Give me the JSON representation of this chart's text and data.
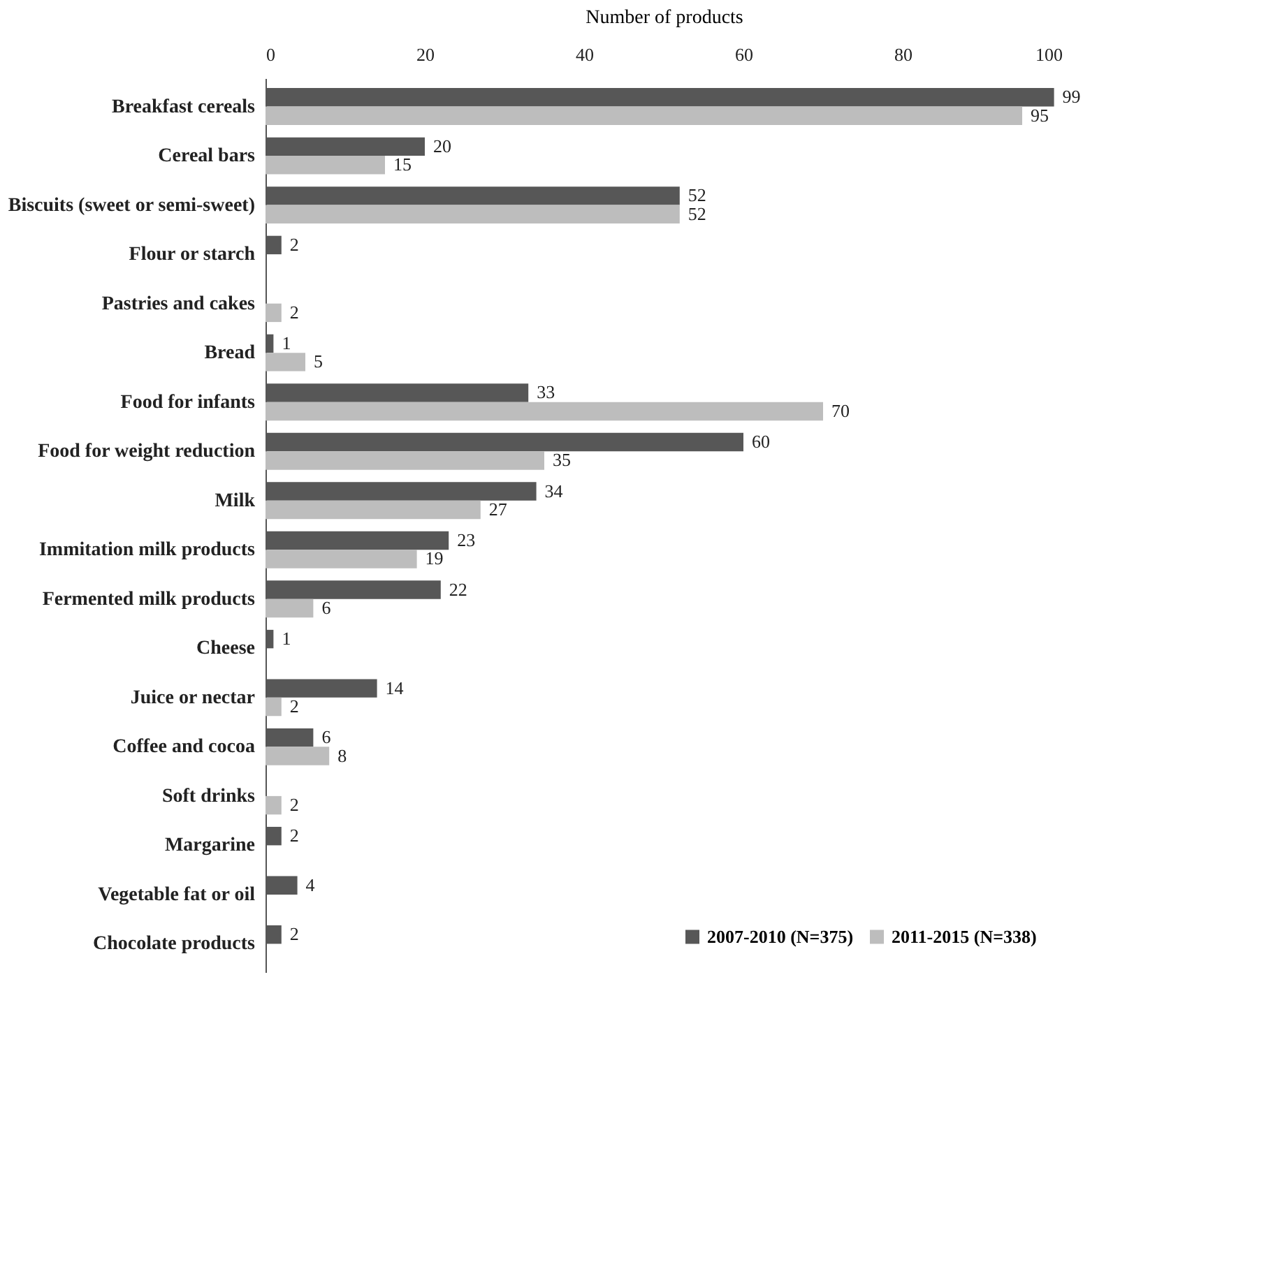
{
  "chart_data": {
    "type": "bar",
    "orientation": "horizontal",
    "xlabel": "Number of products",
    "categories": [
      "Breakfast cereals",
      "Cereal bars",
      "Biscuits (sweet or semi-sweet)",
      "Flour or starch",
      "Pastries and cakes",
      "Bread",
      "Food for infants",
      "Food for weight reduction",
      "Milk",
      "Immitation milk products",
      "Fermented milk products",
      "Cheese",
      "Juice or nectar",
      "Coffee and cocoa",
      "Soft drinks",
      "Margarine",
      "Vegetable fat or oil",
      "Chocolate products"
    ],
    "series": [
      {
        "name": "2007-2010 (N=375)",
        "color": "#575757",
        "values": [
          99,
          20,
          52,
          2,
          null,
          1,
          33,
          60,
          34,
          23,
          22,
          1,
          14,
          6,
          null,
          2,
          4,
          2
        ]
      },
      {
        "name": "2011-2015 (N=338)",
        "color": "#bdbdbd",
        "values": [
          95,
          15,
          52,
          null,
          2,
          5,
          70,
          35,
          27,
          19,
          6,
          null,
          2,
          8,
          2,
          null,
          null,
          null
        ]
      }
    ],
    "xlim": [
      0,
      100
    ],
    "xticks": [
      0,
      20,
      40,
      60,
      80,
      100
    ],
    "grid": false,
    "legend": "bottom right",
    "data_labels": true
  }
}
